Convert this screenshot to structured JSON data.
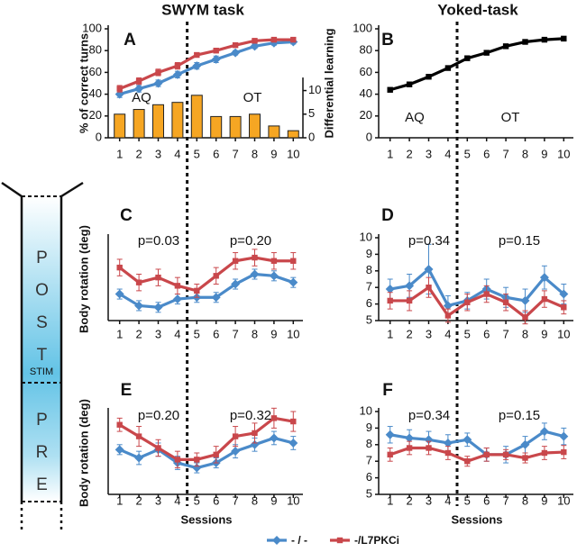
{
  "chart_data": [
    {
      "type": "combo",
      "label": "A",
      "title": "SWYM task",
      "ylabel": "% of correct turns",
      "y2label": "Differential learning",
      "categories": [
        "1",
        "2",
        "3",
        "4",
        "5",
        "6",
        "7",
        "8",
        "9",
        "10"
      ],
      "ylim": [
        0,
        100
      ],
      "yticks": [
        0,
        20,
        40,
        60,
        80,
        100
      ],
      "y2lim": [
        0,
        12
      ],
      "y2ticks": [
        0,
        5,
        10
      ],
      "annotations": [
        "AQ",
        "OT"
      ],
      "series": [
        {
          "type": "line",
          "color": "#4a8ac9",
          "marker": "diamond",
          "values": [
            40,
            45,
            50,
            58,
            66,
            72,
            78,
            84,
            87,
            88
          ],
          "errors": [
            3,
            3,
            3,
            3,
            3,
            3,
            2,
            2,
            2,
            2
          ]
        },
        {
          "type": "line",
          "color": "#c9474b",
          "marker": "square",
          "values": [
            45,
            52,
            60,
            66,
            76,
            80,
            85,
            89,
            90,
            90
          ],
          "errors": [
            3,
            3,
            3,
            3,
            2,
            2,
            2,
            2,
            2,
            2
          ]
        },
        {
          "type": "bar",
          "axis": "y2",
          "color": "#f6a623",
          "values": [
            5,
            6,
            7,
            7.5,
            9,
            4.5,
            4.5,
            5,
            2.5,
            1.5
          ]
        }
      ]
    },
    {
      "type": "line",
      "label": "B",
      "title": "Yoked-task",
      "categories": [
        "1",
        "2",
        "3",
        "4",
        "5",
        "6",
        "7",
        "8",
        "9",
        "10"
      ],
      "ylim": [
        0,
        100
      ],
      "yticks": [
        0,
        20,
        40,
        60,
        80,
        100
      ],
      "annotations": [
        "AQ",
        "OT"
      ],
      "series": [
        {
          "color": "#000000",
          "marker": "square",
          "values": [
            44,
            49,
            56,
            64,
            73,
            78,
            84,
            88,
            90,
            91
          ]
        }
      ]
    },
    {
      "type": "line",
      "label": "C",
      "ylabel": "Body rotation (deg)",
      "categories": [
        "1",
        "2",
        "3",
        "4",
        "5",
        "6",
        "7",
        "8",
        "9",
        "10"
      ],
      "ylim": [
        5,
        10
      ],
      "annotations": [
        "p=0.03",
        "p=0.20"
      ],
      "series": [
        {
          "color": "#4a8ac9",
          "marker": "diamond",
          "values": [
            6.6,
            5.9,
            5.8,
            6.3,
            6.4,
            6.4,
            7.2,
            7.8,
            7.7,
            7.3
          ],
          "errors": [
            0.3,
            0.3,
            0.3,
            0.3,
            0.3,
            0.3,
            0.3,
            0.3,
            0.3,
            0.3
          ]
        },
        {
          "color": "#c9474b",
          "marker": "square",
          "values": [
            8.2,
            7.3,
            7.6,
            7.1,
            6.8,
            7.7,
            8.6,
            8.8,
            8.6,
            8.6
          ],
          "errors": [
            0.5,
            0.5,
            0.5,
            0.5,
            0.4,
            0.5,
            0.5,
            0.5,
            0.5,
            0.5
          ]
        }
      ]
    },
    {
      "type": "line",
      "label": "D",
      "categories": [
        "1",
        "2",
        "3",
        "4",
        "5",
        "6",
        "7",
        "8",
        "9",
        "10"
      ],
      "ylim": [
        5,
        10
      ],
      "yticks": [
        5,
        6,
        7,
        8,
        9,
        10
      ],
      "annotations": [
        "p=0.34",
        "p=0.15"
      ],
      "series": [
        {
          "color": "#4a8ac9",
          "marker": "diamond",
          "values": [
            6.9,
            7.1,
            8.1,
            5.9,
            6.2,
            6.9,
            6.4,
            6.2,
            7.6,
            6.6
          ],
          "errors": [
            0.6,
            0.7,
            1.5,
            0.6,
            0.5,
            0.6,
            0.6,
            0.7,
            0.7,
            0.6
          ]
        },
        {
          "color": "#c9474b",
          "marker": "square",
          "values": [
            6.2,
            6.2,
            7.0,
            5.3,
            6.1,
            6.6,
            6.1,
            5.2,
            6.3,
            5.8
          ],
          "errors": [
            0.5,
            0.6,
            0.6,
            0.4,
            0.5,
            0.5,
            0.5,
            0.4,
            0.5,
            0.4
          ]
        }
      ]
    },
    {
      "type": "line",
      "label": "E",
      "ylabel": "Body rotation (deg)",
      "xlabel": "Sessions",
      "categories": [
        "1",
        "2",
        "3",
        "4",
        "5",
        "6",
        "7",
        "8",
        "9",
        "10"
      ],
      "ylim": [
        5,
        10
      ],
      "annotations": [
        "p=0.20",
        "p=0.32"
      ],
      "series": [
        {
          "color": "#4a8ac9",
          "marker": "diamond",
          "values": [
            7.7,
            7.2,
            7.7,
            6.9,
            6.6,
            6.9,
            7.6,
            8.0,
            8.4,
            8.1
          ],
          "errors": [
            0.3,
            0.4,
            0.4,
            0.4,
            0.3,
            0.3,
            0.4,
            0.4,
            0.4,
            0.4
          ]
        },
        {
          "color": "#c9474b",
          "marker": "square",
          "values": [
            9.2,
            8.5,
            7.8,
            7.1,
            7.1,
            7.4,
            8.5,
            8.7,
            9.6,
            9.4
          ],
          "errors": [
            0.4,
            0.6,
            0.5,
            0.5,
            0.4,
            0.5,
            0.6,
            0.6,
            0.6,
            0.6
          ]
        }
      ]
    },
    {
      "type": "line",
      "label": "F",
      "xlabel": "Sessions",
      "categories": [
        "1",
        "2",
        "3",
        "4",
        "5",
        "6",
        "7",
        "8",
        "9",
        "10"
      ],
      "ylim": [
        5,
        10
      ],
      "yticks": [
        5,
        6,
        7,
        8,
        9,
        10
      ],
      "annotations": [
        "p=0.34",
        "p=0.15"
      ],
      "series": [
        {
          "color": "#4a8ac9",
          "marker": "diamond",
          "values": [
            8.6,
            8.4,
            8.3,
            8.1,
            8.3,
            7.4,
            7.4,
            8.0,
            8.8,
            8.5
          ],
          "errors": [
            0.5,
            0.5,
            0.5,
            0.5,
            0.4,
            0.4,
            0.5,
            0.5,
            0.5,
            0.5
          ]
        },
        {
          "color": "#c9474b",
          "marker": "square",
          "values": [
            7.4,
            7.8,
            7.8,
            7.5,
            7.0,
            7.4,
            7.4,
            7.2,
            7.5,
            7.55
          ],
          "errors": [
            0.4,
            0.4,
            0.4,
            0.4,
            0.3,
            0.4,
            0.3,
            0.3,
            0.4,
            0.4
          ]
        }
      ]
    }
  ],
  "legend": [
    {
      "name": "- / -",
      "color": "#4a8ac9",
      "marker": "diamond"
    },
    {
      "name": "-/L7PKCi",
      "color": "#c9474b",
      "marker": "square"
    }
  ],
  "schematic": {
    "post": "POST",
    "stim": "STIM",
    "pre": "PRE"
  }
}
